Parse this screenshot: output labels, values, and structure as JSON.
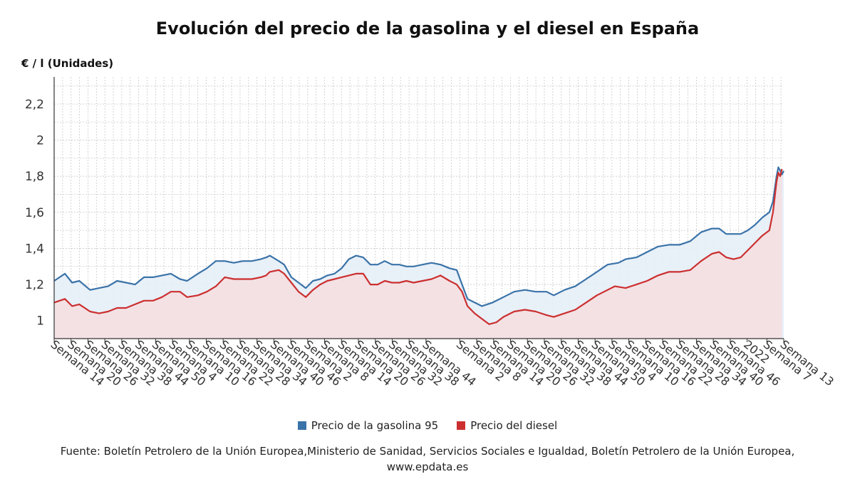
{
  "chart_data": {
    "type": "area",
    "title": "Evolución del precio de la gasolina y el diesel en España",
    "ylabel": "€ / l (Unidades)",
    "ylim": [
      0.9,
      2.35
    ],
    "yticks": [
      1,
      1.2,
      1.4,
      1.6,
      1.8,
      2,
      2.2
    ],
    "ytick_labels": [
      "1",
      "1,2",
      "1,4",
      "1,6",
      "1,8",
      "2",
      "2,2"
    ],
    "grid": true,
    "legend_position": "bottom",
    "x": [
      "Semana 14",
      "Semana 20",
      "Semana 26",
      "Semana 32",
      "Semana 38",
      "Semana 44",
      "Semana 50",
      "Semana 4",
      "Semana 10",
      "Semana 16",
      "Semana 22",
      "Semana 28",
      "Semana 34",
      "Semana 40",
      "Semana 46",
      "Semana 2",
      "Semana 8",
      "Semana 14",
      "Semana 20",
      "Semana 26",
      "Semana 32",
      "Semana 38",
      "Semana 44",
      "Semana 2",
      "Semana 8",
      "Semana 14",
      "Semana 20",
      "Semana 26",
      "Semana 32",
      "Semana 38",
      "Semana 44",
      "Semana 50",
      "Semana 4",
      "Semana 10",
      "Semana 16",
      "Semana 22",
      "Semana 28",
      "Semana 34",
      "Semana 40",
      "Semana 46",
      "2022",
      "Semana 7",
      "Semana 13"
    ],
    "x_index": [
      0,
      6,
      12,
      18,
      24,
      30,
      36,
      42,
      48,
      54,
      60,
      66,
      72,
      78,
      84,
      90,
      96,
      102,
      108,
      114,
      120,
      126,
      132,
      144,
      150,
      156,
      162,
      168,
      174,
      180,
      186,
      192,
      198,
      204,
      210,
      216,
      222,
      228,
      234,
      240,
      246,
      253,
      259
    ],
    "n_points": 260,
    "series": [
      {
        "name": "Precio de la gasolina 95",
        "color": "#3a73a8",
        "fill": "#e6eef7",
        "points": [
          [
            0,
            1.22
          ],
          [
            6,
            1.26
          ],
          [
            10,
            1.21
          ],
          [
            14,
            1.22
          ],
          [
            20,
            1.17
          ],
          [
            25,
            1.18
          ],
          [
            30,
            1.19
          ],
          [
            35,
            1.22
          ],
          [
            40,
            1.21
          ],
          [
            45,
            1.2
          ],
          [
            50,
            1.24
          ],
          [
            55,
            1.24
          ],
          [
            60,
            1.25
          ],
          [
            65,
            1.26
          ],
          [
            70,
            1.23
          ],
          [
            74,
            1.22
          ],
          [
            80,
            1.26
          ],
          [
            85,
            1.29
          ],
          [
            90,
            1.33
          ],
          [
            95,
            1.33
          ],
          [
            100,
            1.32
          ],
          [
            105,
            1.33
          ],
          [
            110,
            1.33
          ],
          [
            115,
            1.34
          ],
          [
            118,
            1.35
          ],
          [
            120,
            1.36
          ],
          [
            125,
            1.33
          ],
          [
            128,
            1.31
          ],
          [
            132,
            1.24
          ],
          [
            136,
            1.21
          ],
          [
            140,
            1.18
          ],
          [
            144,
            1.22
          ],
          [
            148,
            1.23
          ],
          [
            152,
            1.25
          ],
          [
            156,
            1.26
          ],
          [
            160,
            1.29
          ],
          [
            164,
            1.34
          ],
          [
            168,
            1.36
          ],
          [
            172,
            1.35
          ],
          [
            176,
            1.31
          ],
          [
            180,
            1.31
          ],
          [
            184,
            1.33
          ],
          [
            188,
            1.31
          ],
          [
            192,
            1.31
          ],
          [
            196,
            1.3
          ],
          [
            200,
            1.3
          ],
          [
            205,
            1.31
          ],
          [
            210,
            1.32
          ],
          [
            215,
            1.31
          ],
          [
            220,
            1.29
          ],
          [
            224,
            1.28
          ],
          [
            227,
            1.2
          ],
          [
            230,
            1.12
          ],
          [
            234,
            1.1
          ],
          [
            238,
            1.08
          ],
          [
            244,
            1.1
          ],
          [
            250,
            1.13
          ],
          [
            256,
            1.16
          ],
          [
            262,
            1.17
          ],
          [
            268,
            1.16
          ],
          [
            274,
            1.16
          ],
          [
            278,
            1.14
          ],
          [
            284,
            1.17
          ],
          [
            290,
            1.19
          ],
          [
            296,
            1.23
          ],
          [
            302,
            1.27
          ],
          [
            308,
            1.31
          ],
          [
            314,
            1.32
          ],
          [
            318,
            1.34
          ],
          [
            324,
            1.35
          ],
          [
            330,
            1.38
          ],
          [
            336,
            1.41
          ],
          [
            342,
            1.42
          ],
          [
            348,
            1.42
          ],
          [
            354,
            1.44
          ],
          [
            360,
            1.49
          ],
          [
            366,
            1.51
          ],
          [
            370,
            1.51
          ],
          [
            374,
            1.48
          ],
          [
            378,
            1.48
          ],
          [
            382,
            1.48
          ],
          [
            386,
            1.5
          ],
          [
            390,
            1.53
          ],
          [
            394,
            1.57
          ],
          [
            398,
            1.6
          ],
          [
            400,
            1.66
          ],
          [
            402,
            1.8
          ],
          [
            403,
            1.85
          ],
          [
            404,
            1.83
          ],
          [
            405,
            1.81
          ],
          [
            406,
            1.83
          ]
        ]
      },
      {
        "name": "Precio del diesel",
        "color": "#cc2f2f",
        "fill": "#f3e1e4",
        "points": [
          [
            0,
            1.1
          ],
          [
            6,
            1.12
          ],
          [
            10,
            1.08
          ],
          [
            14,
            1.09
          ],
          [
            20,
            1.05
          ],
          [
            25,
            1.04
          ],
          [
            30,
            1.05
          ],
          [
            35,
            1.07
          ],
          [
            40,
            1.07
          ],
          [
            45,
            1.09
          ],
          [
            50,
            1.11
          ],
          [
            55,
            1.11
          ],
          [
            60,
            1.13
          ],
          [
            65,
            1.16
          ],
          [
            70,
            1.16
          ],
          [
            74,
            1.13
          ],
          [
            80,
            1.14
          ],
          [
            85,
            1.16
          ],
          [
            90,
            1.19
          ],
          [
            95,
            1.24
          ],
          [
            100,
            1.23
          ],
          [
            105,
            1.23
          ],
          [
            110,
            1.23
          ],
          [
            115,
            1.24
          ],
          [
            118,
            1.25
          ],
          [
            120,
            1.27
          ],
          [
            125,
            1.28
          ],
          [
            128,
            1.26
          ],
          [
            132,
            1.21
          ],
          [
            136,
            1.16
          ],
          [
            140,
            1.13
          ],
          [
            144,
            1.17
          ],
          [
            148,
            1.2
          ],
          [
            152,
            1.22
          ],
          [
            156,
            1.23
          ],
          [
            160,
            1.24
          ],
          [
            164,
            1.25
          ],
          [
            168,
            1.26
          ],
          [
            172,
            1.26
          ],
          [
            176,
            1.2
          ],
          [
            180,
            1.2
          ],
          [
            184,
            1.22
          ],
          [
            188,
            1.21
          ],
          [
            192,
            1.21
          ],
          [
            196,
            1.22
          ],
          [
            200,
            1.21
          ],
          [
            205,
            1.22
          ],
          [
            210,
            1.23
          ],
          [
            215,
            1.25
          ],
          [
            220,
            1.22
          ],
          [
            224,
            1.2
          ],
          [
            227,
            1.16
          ],
          [
            230,
            1.08
          ],
          [
            234,
            1.04
          ],
          [
            238,
            1.01
          ],
          [
            242,
            0.98
          ],
          [
            246,
            0.99
          ],
          [
            250,
            1.02
          ],
          [
            256,
            1.05
          ],
          [
            262,
            1.06
          ],
          [
            268,
            1.05
          ],
          [
            274,
            1.03
          ],
          [
            278,
            1.02
          ],
          [
            284,
            1.04
          ],
          [
            290,
            1.06
          ],
          [
            296,
            1.1
          ],
          [
            302,
            1.14
          ],
          [
            308,
            1.17
          ],
          [
            312,
            1.19
          ],
          [
            318,
            1.18
          ],
          [
            324,
            1.2
          ],
          [
            330,
            1.22
          ],
          [
            336,
            1.25
          ],
          [
            342,
            1.27
          ],
          [
            348,
            1.27
          ],
          [
            354,
            1.28
          ],
          [
            360,
            1.33
          ],
          [
            366,
            1.37
          ],
          [
            370,
            1.38
          ],
          [
            374,
            1.35
          ],
          [
            378,
            1.34
          ],
          [
            382,
            1.35
          ],
          [
            386,
            1.39
          ],
          [
            390,
            1.43
          ],
          [
            394,
            1.47
          ],
          [
            398,
            1.5
          ],
          [
            400,
            1.6
          ],
          [
            402,
            1.77
          ],
          [
            403,
            1.82
          ],
          [
            404,
            1.8
          ],
          [
            405,
            1.84
          ]
        ]
      }
    ]
  },
  "legend": {
    "gasolina_label": "Precio de la gasolina 95",
    "gasolina_color": "#3a73a8",
    "diesel_label": "Precio del diesel",
    "diesel_color": "#cc2f2f"
  },
  "source": "Fuente: Boletín Petrolero de la Unión Europea,Ministerio de Sanidad, Servicios Sociales e Igualdad, Boletín Petrolero de la Unión Europea, www.epdata.es"
}
